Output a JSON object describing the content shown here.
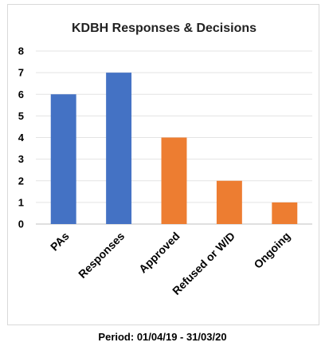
{
  "chart_data": {
    "type": "bar",
    "title": "KDBH Responses & Decisions",
    "xlabel": "",
    "ylabel": "",
    "categories": [
      "PAs",
      "Responses",
      "Approved",
      "Refused or W/D",
      "Ongoing"
    ],
    "values": [
      6,
      7,
      4,
      2,
      1
    ],
    "bar_colors": [
      "#4472C4",
      "#4472C4",
      "#ED7D31",
      "#ED7D31",
      "#ED7D31"
    ],
    "ylim": [
      0,
      8
    ],
    "yticks": [
      0,
      1,
      2,
      3,
      4,
      5,
      6,
      7,
      8
    ],
    "grid": true,
    "legend": "none"
  },
  "caption": "Period: 01/04/19 - 31/03/20"
}
